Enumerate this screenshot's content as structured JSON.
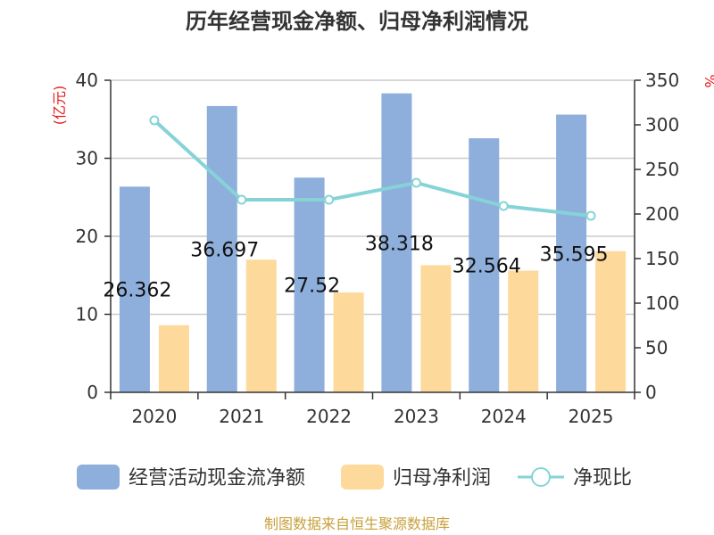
{
  "chart_data": {
    "type": "bar",
    "title": "历年经营现金净额、归母净利润情况",
    "categories": [
      "2020",
      "2021",
      "2022",
      "2023",
      "2024",
      "2025"
    ],
    "series": [
      {
        "name": "经营活动现金流净额",
        "axis": "left",
        "kind": "bar",
        "color": "#8eaedb",
        "values": [
          26.362,
          36.697,
          27.52,
          38.318,
          32.564,
          35.595
        ]
      },
      {
        "name": "归母净利润",
        "axis": "left",
        "kind": "bar",
        "color": "#fdd99b",
        "values": [
          8.6,
          17.0,
          12.8,
          16.3,
          15.6,
          18.1
        ]
      },
      {
        "name": "净现比",
        "axis": "right",
        "kind": "line",
        "color": "#86d3d7",
        "values": [
          305,
          216,
          216,
          235,
          209,
          198
        ]
      }
    ],
    "data_labels": [
      "26.362",
      "36.697",
      "27.52",
      "38.318",
      "32.564",
      "35.595"
    ],
    "y_left": {
      "label": "(亿元)",
      "ylim": [
        0,
        40
      ],
      "ticks": [
        "0",
        "10",
        "20",
        "30",
        "40"
      ]
    },
    "y_right": {
      "label": "%",
      "ylim": [
        0,
        350
      ],
      "ticks": [
        "0",
        "50",
        "100",
        "150",
        "200",
        "250",
        "300",
        "350"
      ]
    },
    "grid": true,
    "legend_position": "bottom",
    "source": "制图数据来自恒生聚源数据库"
  }
}
